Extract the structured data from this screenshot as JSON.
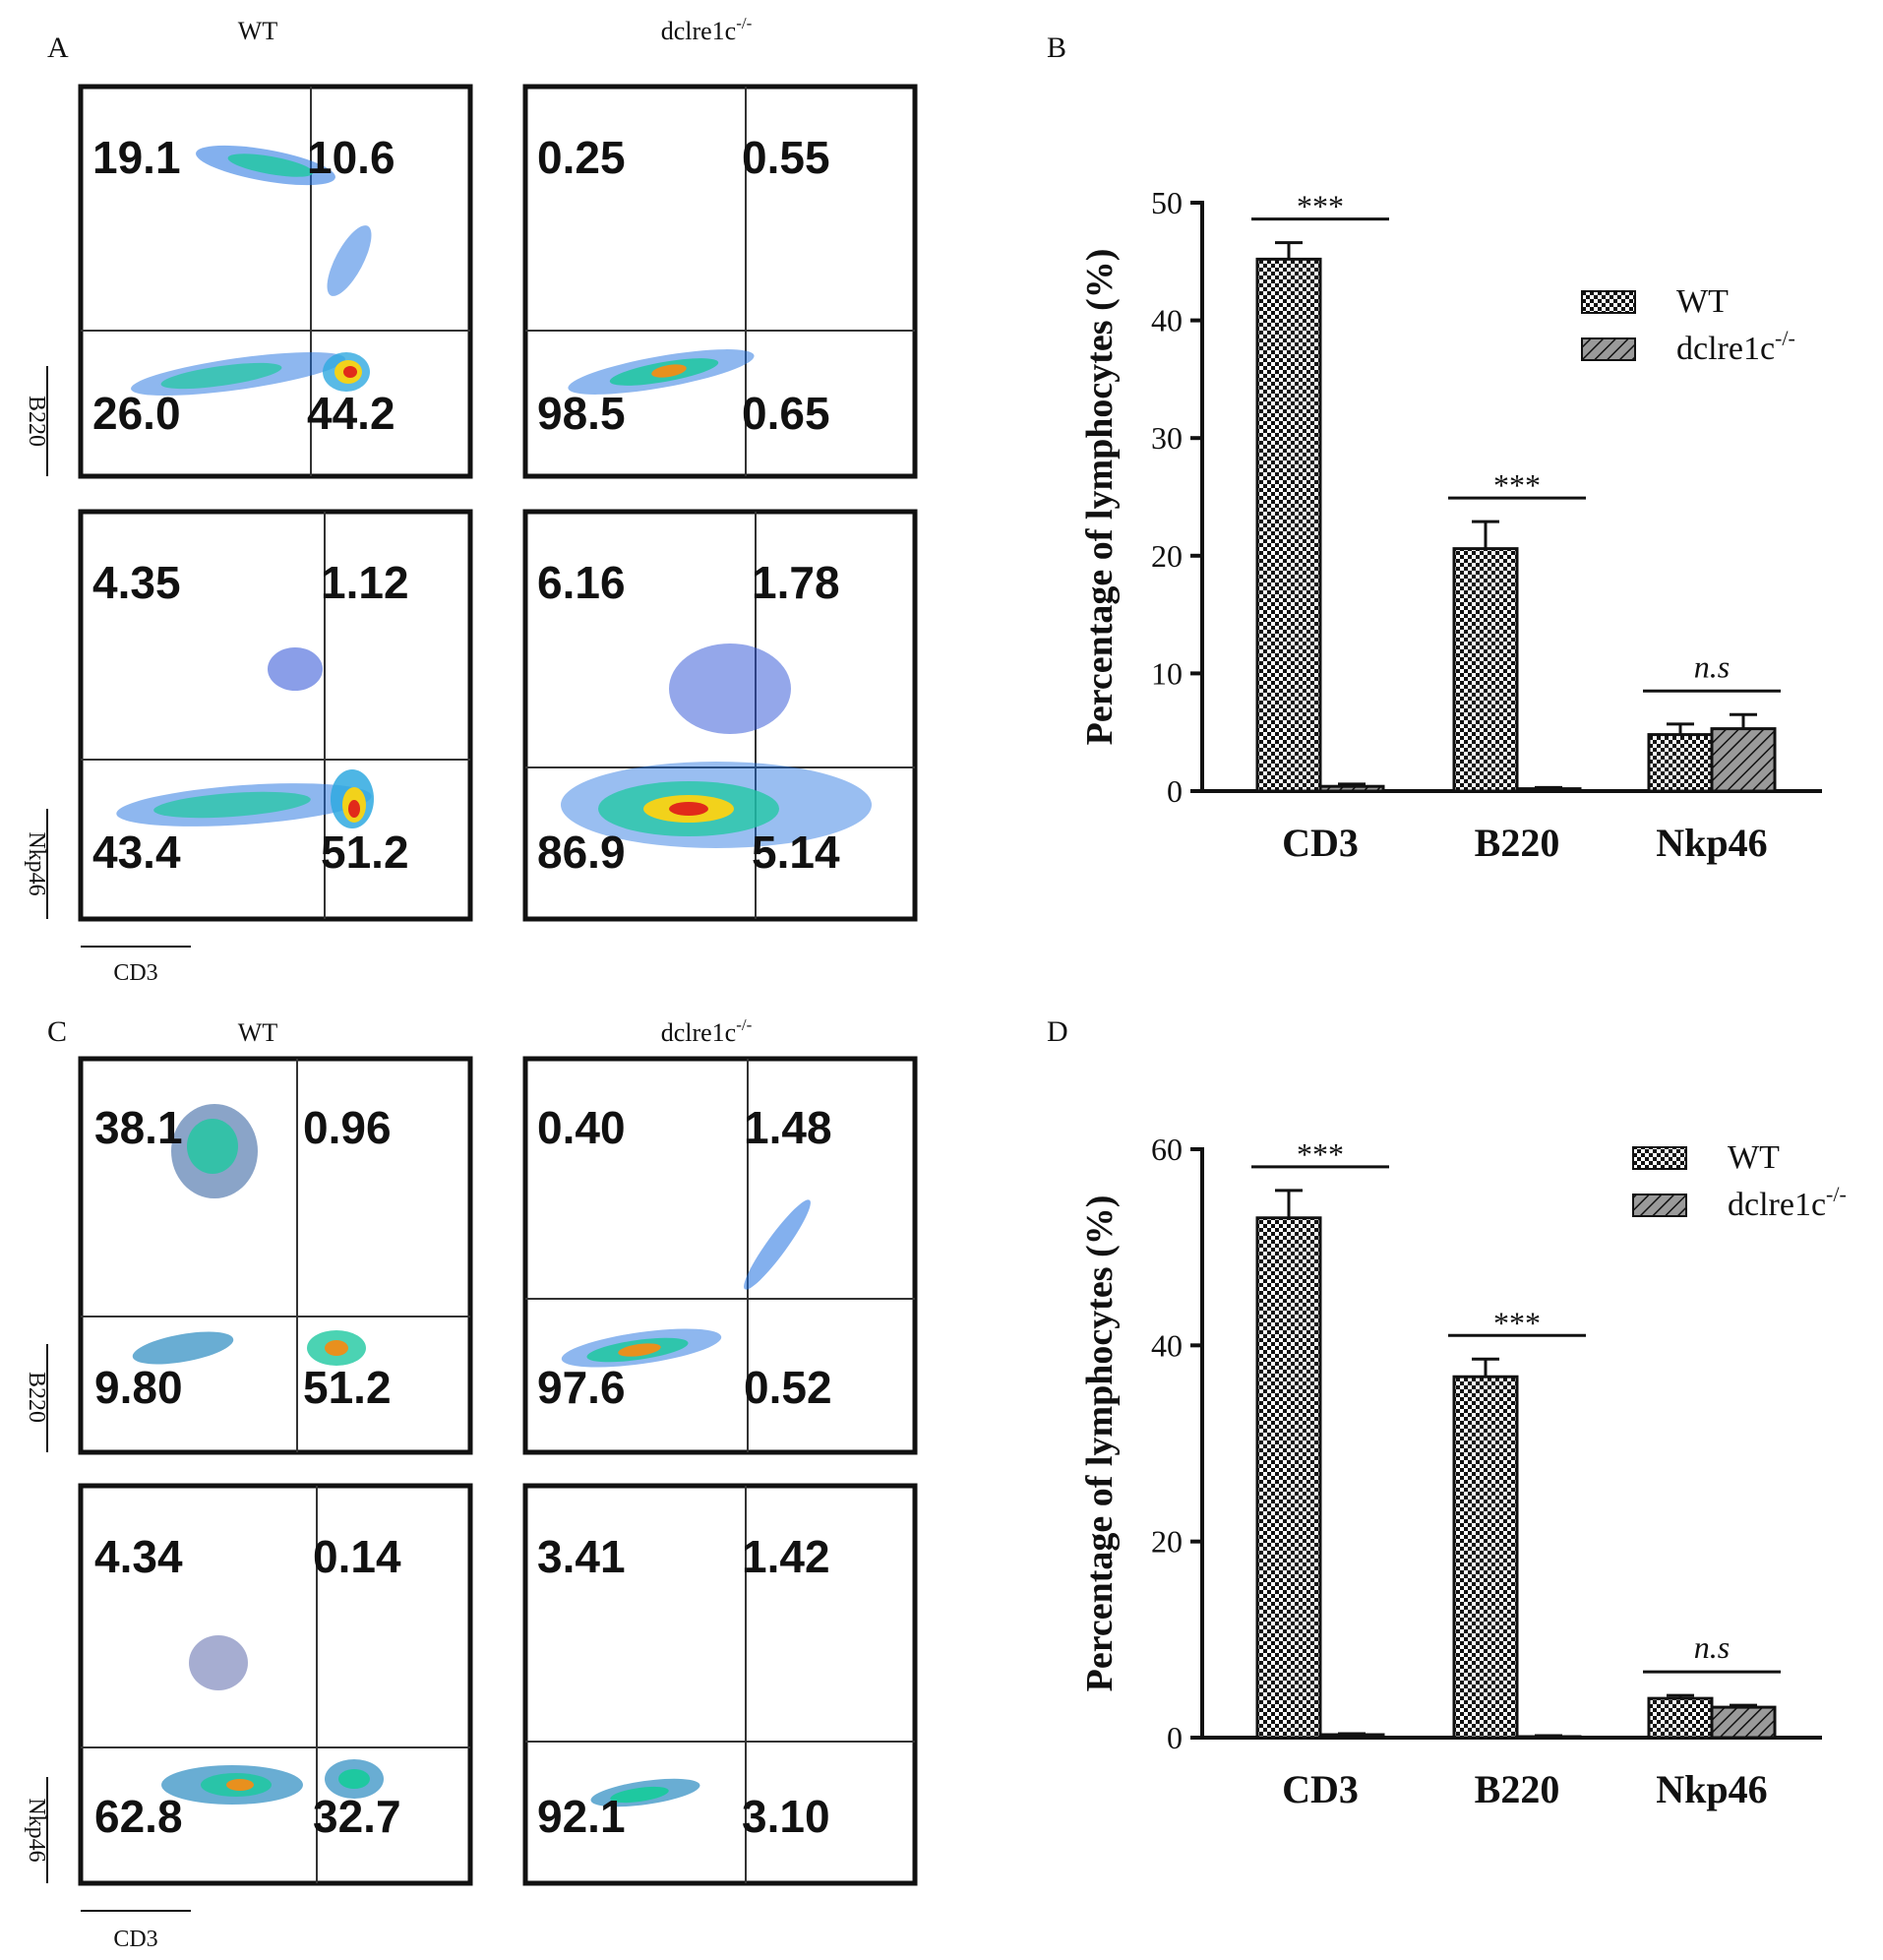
{
  "flow_panels": [
    {
      "letter": "A",
      "columns": [
        "WT",
        "dclre1c"
      ],
      "column_sup": [
        "",
        "-/-"
      ],
      "x_axis_label": "CD3",
      "rows": [
        {
          "y_axis_label": "B220",
          "plots": [
            {
              "values": [
                "19.1",
                "10.6",
                "26.0",
                "44.2"
              ],
              "palette": "color"
            },
            {
              "values": [
                "0.25",
                "0.55",
                "98.5",
                "0.65"
              ],
              "palette": "color"
            }
          ]
        },
        {
          "y_axis_label": "Nkp46",
          "plots": [
            {
              "values": [
                "4.35",
                "1.12",
                "43.4",
                "51.2"
              ],
              "palette": "color"
            },
            {
              "values": [
                "6.16",
                "1.78",
                "86.9",
                "5.14"
              ],
              "palette": "color"
            }
          ]
        }
      ]
    },
    {
      "letter": "C",
      "columns": [
        "WT",
        "dclre1c"
      ],
      "column_sup": [
        "",
        "-/-"
      ],
      "x_axis_label": "CD3",
      "rows": [
        {
          "y_axis_label": "B220",
          "plots": [
            {
              "values": [
                "38.1",
                "0.96",
                "9.80",
                "51.2"
              ],
              "palette": "color"
            },
            {
              "values": [
                "0.40",
                "1.48",
                "97.6",
                "0.52"
              ],
              "palette": "color"
            }
          ]
        },
        {
          "y_axis_label": "Nkp46",
          "plots": [
            {
              "values": [
                "4.34",
                "0.14",
                "62.8",
                "32.7"
              ],
              "palette": "color"
            },
            {
              "values": [
                "3.41",
                "1.42",
                "92.1",
                "3.10"
              ],
              "palette": "color"
            }
          ]
        }
      ]
    }
  ],
  "chart_data": [
    {
      "panel": "B",
      "type": "bar",
      "title": "",
      "xlabel": "",
      "ylabel": "Percentage of lymphocytes (%)",
      "categories": [
        "CD3",
        "B220",
        "Nkp46"
      ],
      "series": [
        {
          "name": "WT",
          "name_sup": "",
          "values": [
            45.2,
            20.6,
            4.8
          ],
          "errors": [
            1.4,
            2.3,
            0.9
          ]
        },
        {
          "name": "dclre1c",
          "name_sup": "-/-",
          "values": [
            0.4,
            0.2,
            5.3
          ],
          "errors": [
            0.2,
            0.1,
            1.2
          ]
        }
      ],
      "significance": [
        "***",
        "***",
        "n.s"
      ],
      "ylim": [
        0,
        50
      ],
      "yticks": [
        "0",
        "10",
        "20",
        "30",
        "40",
        "50"
      ],
      "legend": "right"
    },
    {
      "panel": "D",
      "type": "bar",
      "title": "",
      "xlabel": "",
      "ylabel": "Percentage of lymphocytes (%)",
      "categories": [
        "CD3",
        "B220",
        "Nkp46"
      ],
      "series": [
        {
          "name": "WT",
          "name_sup": "",
          "values": [
            53.0,
            36.8,
            4.0
          ],
          "errors": [
            2.8,
            1.8,
            0.3
          ]
        },
        {
          "name": "dclre1c",
          "name_sup": "-/-",
          "values": [
            0.3,
            0.1,
            3.1
          ],
          "errors": [
            0.1,
            0.1,
            0.2
          ]
        }
      ],
      "significance": [
        "***",
        "***",
        "n.s"
      ],
      "ylim": [
        0,
        60
      ],
      "yticks": [
        "0",
        "20",
        "40",
        "60"
      ],
      "legend": "top-right"
    }
  ]
}
